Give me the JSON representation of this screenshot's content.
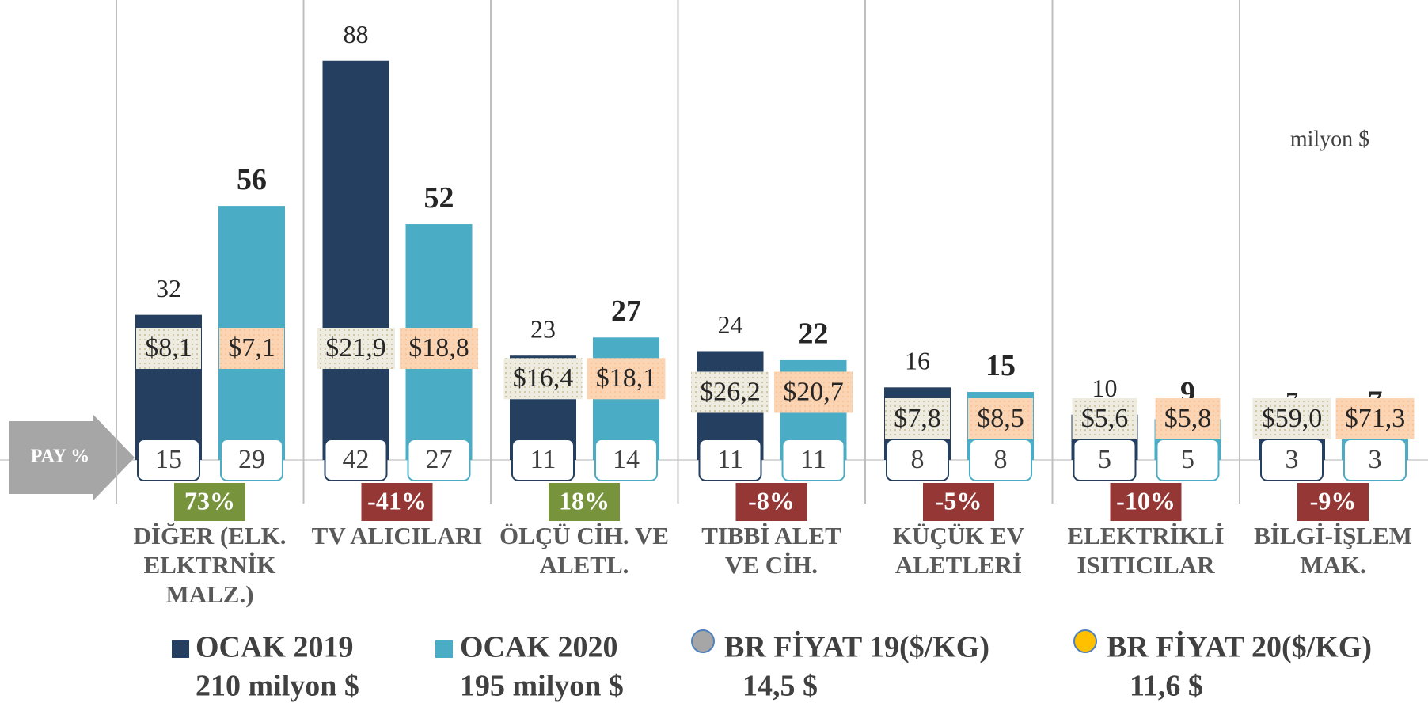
{
  "chart_data": {
    "type": "bar",
    "unit_label": "milyon $",
    "share_label": "PAY %",
    "categories": [
      [
        "DİĞER (ELK.",
        "ELKTRNİK",
        "MALZ.)"
      ],
      [
        "TV ALICILARI"
      ],
      [
        "ÖLÇÜ CİH. VE",
        "ALETL."
      ],
      [
        "TIBBİ ALET",
        "VE CİH."
      ],
      [
        "KÜÇÜK EV",
        "ALETLERİ"
      ],
      [
        "ELEKTRİKLİ",
        "ISITICILAR"
      ],
      [
        "BİLGİ-İŞLEM",
        "MAK."
      ]
    ],
    "ylim": [
      0,
      100
    ],
    "series": [
      {
        "name": "OCAK 2019",
        "total": "210 milyon $",
        "color": "#243f60",
        "values": [
          32,
          88,
          23,
          24,
          16,
          10,
          7
        ],
        "shares": [
          15,
          42,
          11,
          11,
          8,
          5,
          3
        ]
      },
      {
        "name": "OCAK 2020",
        "total": "195 milyon $",
        "color": "#4bacc6",
        "values": [
          56,
          52,
          27,
          22,
          15,
          9,
          7
        ],
        "shares": [
          29,
          27,
          14,
          11,
          8,
          5,
          3
        ]
      }
    ],
    "prices": [
      {
        "name": "BR FİYAT 19($/KG)",
        "total": "14,5 $",
        "color": "#a6a6a6",
        "box_color": "#eeece1",
        "values": [
          8.1,
          21.9,
          16.4,
          26.2,
          7.8,
          5.6,
          59.0
        ],
        "value_labels": [
          "$8,1",
          "$21,9",
          "$16,4",
          "$26,2",
          "$7,8",
          "$5,6",
          "$59,0"
        ]
      },
      {
        "name": "BR FİYAT 20($/KG)",
        "total": "11,6 $",
        "color": "#ffc000",
        "box_color": "#fbd4b4",
        "values": [
          7.1,
          18.8,
          18.1,
          20.7,
          8.5,
          5.8,
          71.3
        ],
        "value_labels": [
          "$7,1",
          "$18,8",
          "$18,1",
          "$20,7",
          "$8,5",
          "$5,8",
          "$71,3"
        ]
      }
    ],
    "change": {
      "values": [
        73,
        -41,
        18,
        -8,
        -5,
        -10,
        -9
      ],
      "value_labels": [
        "73%",
        "-41%",
        "18%",
        "-8%",
        "-5%",
        "-10%",
        "-9%"
      ],
      "colors": {
        "up": "#77933c",
        "down": "#953735"
      }
    }
  }
}
